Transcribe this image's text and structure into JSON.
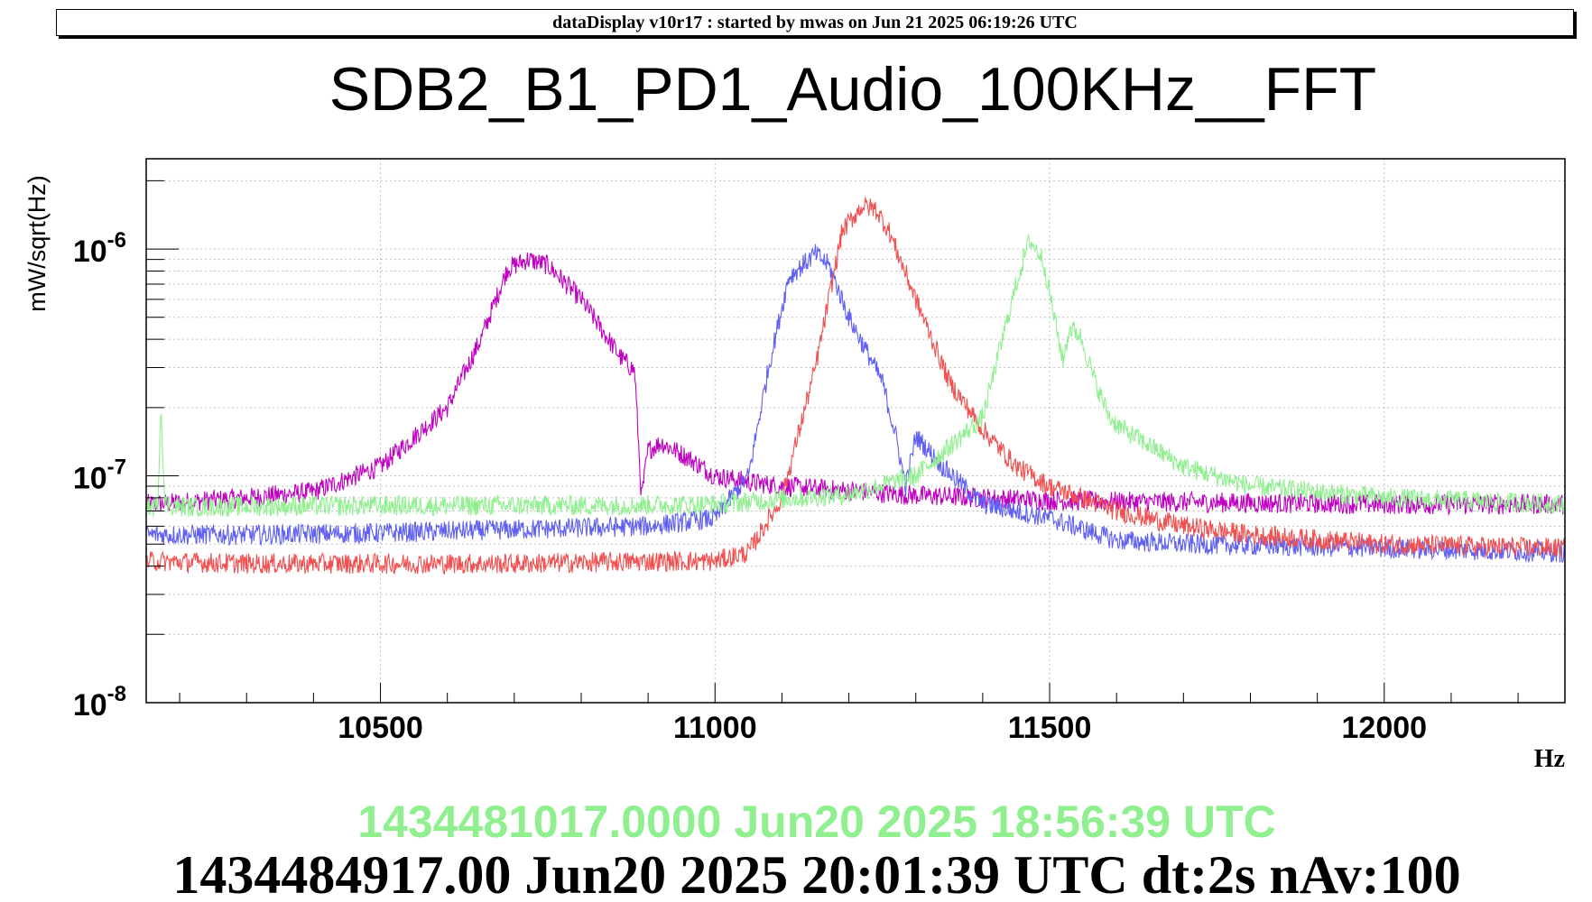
{
  "banner": "dataDisplay v10r17 : started by mwas on Jun 21 2025 06:19:26 UTC",
  "footer": {
    "ref_time": "1434481017.0000 Jun20 2025 18:56:39 UTC",
    "main_time": "1434484917.00 Jun20 2025 20:01:39 UTC dt:2s nAv:100"
  },
  "colors": {
    "reference_trace": "#90f090",
    "main_text": "#000000"
  },
  "chart_data": {
    "type": "line",
    "title": "SDB2_B1_PD1_Audio_100KHz__FFT",
    "xlabel": "Hz",
    "ylabel": "mW/sqrt(Hz)",
    "xlim": [
      10150,
      12270
    ],
    "ylim": [
      1e-08,
      2.5e-06
    ],
    "yscale": "log",
    "grid": true,
    "x_ticks": [
      10500,
      11000,
      11500,
      12000
    ],
    "y_ticks": [
      {
        "value": 1e-08,
        "base": "10",
        "exp": "-8"
      },
      {
        "value": 1e-07,
        "base": "10",
        "exp": "-7"
      },
      {
        "value": 1e-06,
        "base": "10",
        "exp": "-6"
      }
    ],
    "series": [
      {
        "color": "#c000c0",
        "x": [
          10160,
          10300,
          10400,
          10500,
          10600,
          10650,
          10690,
          10720,
          10750,
          10800,
          10860,
          10880,
          10890,
          10900,
          10920,
          10960,
          11000,
          11050,
          11100,
          11200,
          11300,
          11400,
          11500,
          11600,
          11800,
          12000,
          12270
        ],
        "y": [
          7.5e-08,
          8e-08,
          8.5e-08,
          1.1e-07,
          2e-07,
          4e-07,
          8.2e-07,
          9e-07,
          8.5e-07,
          6e-07,
          3.3e-07,
          2.9e-07,
          8e-08,
          1.3e-07,
          1.4e-07,
          1.2e-07,
          1e-07,
          9.4e-08,
          9e-08,
          8.6e-08,
          8.2e-08,
          8e-08,
          7.8e-08,
          7.7e-08,
          7.6e-08,
          7.5e-08,
          7.5e-08
        ]
      },
      {
        "color": "#6060f0",
        "x": [
          10160,
          10300,
          10500,
          10700,
          10900,
          11000,
          11050,
          11080,
          11110,
          11150,
          11170,
          11200,
          11250,
          11270,
          11285,
          11300,
          11340,
          11400,
          11500,
          11600,
          11700,
          12000,
          12270
        ],
        "y": [
          5.5e-08,
          5.5e-08,
          5.6e-08,
          5.8e-08,
          6e-08,
          6.5e-08,
          1e-07,
          3e-07,
          7.5e-07,
          9.5e-07,
          8.5e-07,
          5e-07,
          2.6e-07,
          1.5e-07,
          9e-08,
          1.5e-07,
          1.1e-07,
          7.5e-08,
          6.5e-08,
          5.2e-08,
          5e-08,
          4.8e-08,
          4.6e-08
        ]
      },
      {
        "color": "#f05050",
        "x": [
          10160,
          10300,
          10500,
          10700,
          10900,
          11000,
          11050,
          11100,
          11150,
          11190,
          11220,
          11240,
          11260,
          11300,
          11350,
          11400,
          11450,
          11500,
          11600,
          11700,
          11800,
          12000,
          12270
        ],
        "y": [
          4.2e-08,
          4.1e-08,
          4.1e-08,
          4.1e-08,
          4.2e-08,
          4.2e-08,
          4.6e-08,
          8e-08,
          3e-07,
          1.2e-06,
          1.55e-06,
          1.5e-06,
          1.2e-06,
          6e-07,
          2.6e-07,
          1.6e-07,
          1.1e-07,
          9e-08,
          7e-08,
          6e-08,
          5.5e-08,
          5e-08,
          4.8e-08
        ]
      },
      {
        "color": "#90f090",
        "x": [
          10160,
          10167,
          10172,
          10178,
          10200,
          10500,
          10800,
          11000,
          11200,
          11300,
          11400,
          11450,
          11470,
          11490,
          11520,
          11530,
          11545,
          11570,
          11590,
          11610,
          11700,
          11800,
          12000,
          12270
        ],
        "y": [
          7.3e-08,
          7.3e-08,
          2.1e-07,
          7.5e-08,
          7.3e-08,
          7.4e-08,
          7.4e-08,
          7.5e-08,
          8.3e-08,
          1e-07,
          1.8e-07,
          7e-07,
          1.1e-06,
          9e-07,
          3.2e-07,
          4.5e-07,
          4.2e-07,
          2.5e-07,
          1.8e-07,
          1.6e-07,
          1.1e-07,
          9e-08,
          8e-08,
          7.5e-08
        ]
      }
    ]
  }
}
